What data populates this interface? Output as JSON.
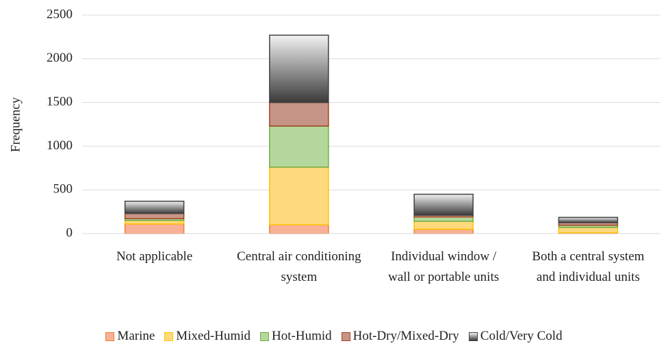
{
  "chart_data": {
    "type": "stacked_bar",
    "ylabel": "Frequency",
    "categories": [
      "Not applicable",
      "Central air conditioning system",
      "Individual window / wall or portable units",
      "Both a central system and individual units"
    ],
    "series": [
      {
        "name": "Marine",
        "color": "#f8b196",
        "values": [
          110,
          100,
          50,
          10
        ]
      },
      {
        "name": "Mixed-Humid",
        "color": "#ffd97d",
        "values": [
          40,
          660,
          90,
          60
        ]
      },
      {
        "name": "Hot-Humid",
        "color": "#b4d89b",
        "values": [
          20,
          470,
          50,
          25
        ]
      },
      {
        "name": "Hot-Dry/Mixed-Dry",
        "color": "#c79488",
        "values": [
          60,
          270,
          20,
          30
        ]
      },
      {
        "name": "Cold/Very Cold",
        "color": "#8c8c8c",
        "values": [
          140,
          770,
          240,
          60
        ]
      }
    ],
    "ylim": [
      0,
      2500
    ],
    "yticks": [
      0,
      500,
      1000,
      1500,
      2000,
      2500
    ],
    "grid": true
  }
}
